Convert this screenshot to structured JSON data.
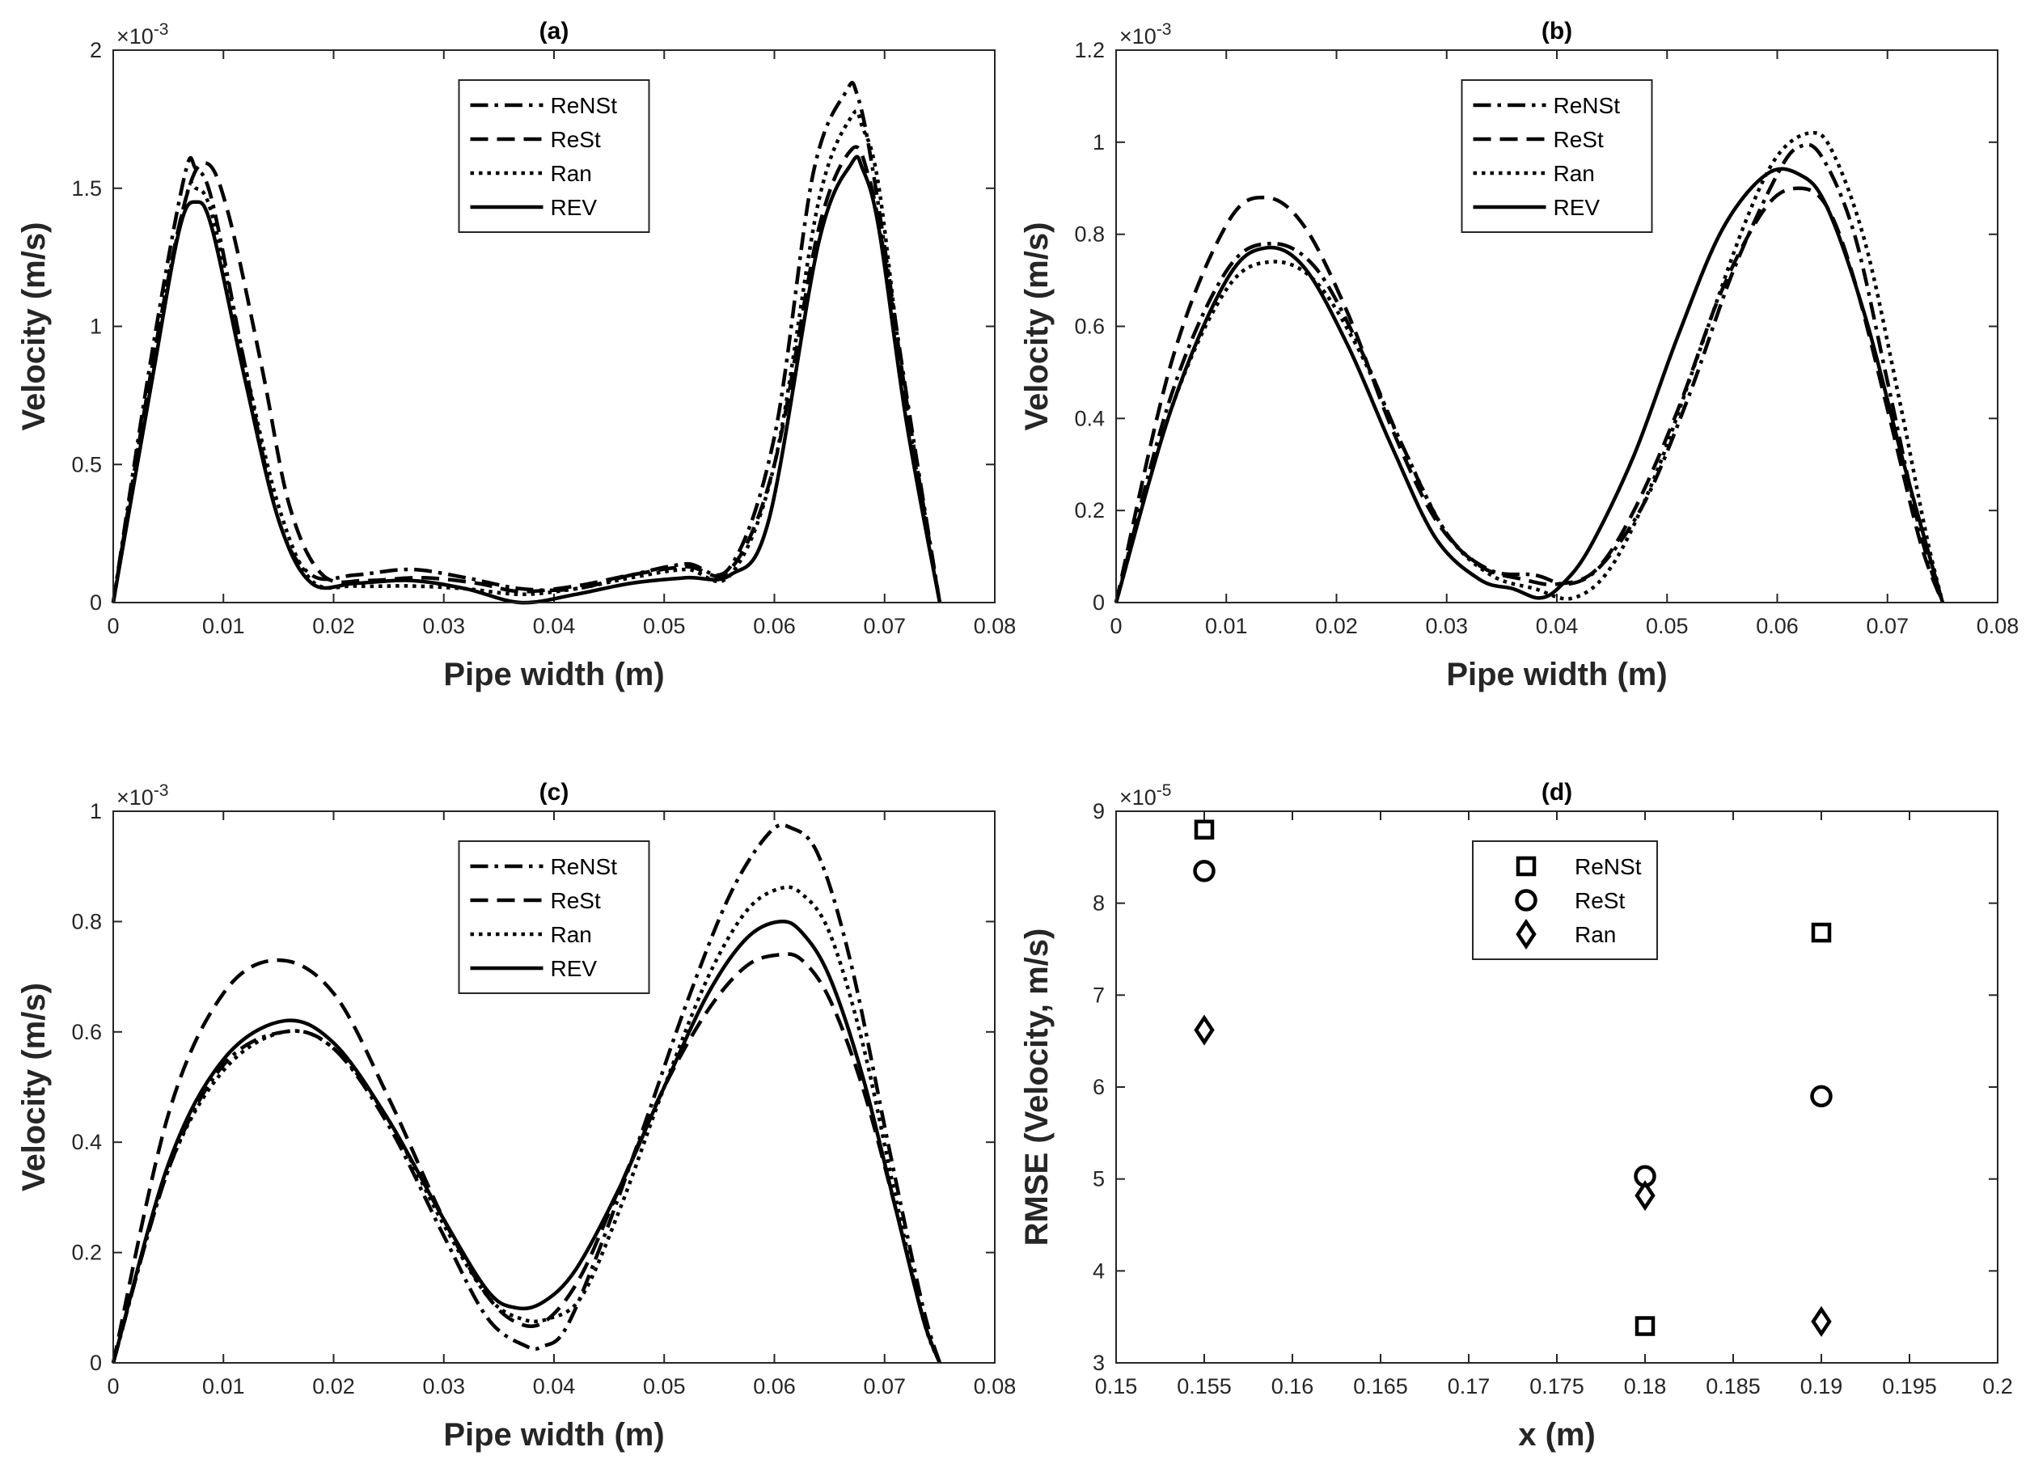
{
  "colors": {
    "line": "#000000",
    "axis": "#262626",
    "background": "#ffffff"
  },
  "chart_data": [
    {
      "id": "a",
      "type": "line",
      "title": "(a)",
      "xlabel": "Pipe width (m)",
      "ylabel": "Velocity (m/s)",
      "xlim": [
        0,
        0.08
      ],
      "ylim": [
        0,
        2
      ],
      "xticks": [
        0,
        0.01,
        0.02,
        0.03,
        0.04,
        0.05,
        0.06,
        0.07,
        0.08
      ],
      "xtick_labels": [
        "0",
        "0.01",
        "0.02",
        "0.03",
        "0.04",
        "0.05",
        "0.06",
        "0.07",
        "0.08"
      ],
      "yticks": [
        0,
        0.5,
        1,
        1.5,
        2
      ],
      "ytick_labels": [
        "0",
        "0.5",
        "1",
        "1.5",
        "2"
      ],
      "multiplier": "×10",
      "multiplier_exp": "-3",
      "legend_position": "top-center",
      "series": [
        {
          "name": "ReNSt",
          "dash": "dashdot",
          "x": [
            0,
            0.0035,
            0.0065,
            0.0075,
            0.009,
            0.012,
            0.015,
            0.018,
            0.022,
            0.027,
            0.032,
            0.037,
            0.042,
            0.047,
            0.052,
            0.056,
            0.06,
            0.0635,
            0.0665,
            0.0675,
            0.069,
            0.072,
            0.075
          ],
          "y": [
            0,
            0.9,
            1.55,
            1.57,
            1.45,
            0.85,
            0.3,
            0.1,
            0.1,
            0.12,
            0.09,
            0.05,
            0.05,
            0.1,
            0.14,
            0.13,
            0.6,
            1.55,
            1.85,
            1.84,
            1.55,
            0.75,
            0
          ]
        },
        {
          "name": "ReSt",
          "dash": "dashed",
          "x": [
            0,
            0.0035,
            0.0065,
            0.0085,
            0.0105,
            0.0135,
            0.016,
            0.019,
            0.023,
            0.028,
            0.033,
            0.037,
            0.042,
            0.047,
            0.052,
            0.056,
            0.06,
            0.064,
            0.067,
            0.0685,
            0.07,
            0.0725,
            0.075
          ],
          "y": [
            0,
            0.85,
            1.45,
            1.59,
            1.4,
            0.85,
            0.35,
            0.1,
            0.08,
            0.09,
            0.07,
            0.04,
            0.06,
            0.1,
            0.13,
            0.12,
            0.5,
            1.35,
            1.64,
            1.55,
            1.25,
            0.6,
            0
          ]
        },
        {
          "name": "Ran",
          "dash": "dotted",
          "x": [
            0,
            0.0035,
            0.0065,
            0.0075,
            0.009,
            0.012,
            0.015,
            0.018,
            0.022,
            0.027,
            0.032,
            0.037,
            0.042,
            0.047,
            0.052,
            0.056,
            0.06,
            0.064,
            0.067,
            0.068,
            0.0695,
            0.072,
            0.075
          ],
          "y": [
            0,
            0.85,
            1.45,
            1.5,
            1.4,
            0.85,
            0.35,
            0.08,
            0.06,
            0.06,
            0.05,
            0.03,
            0.05,
            0.09,
            0.12,
            0.1,
            0.5,
            1.45,
            1.76,
            1.72,
            1.5,
            0.7,
            0
          ]
        },
        {
          "name": "REV",
          "dash": "solid",
          "x": [
            0,
            0.0035,
            0.006,
            0.0075,
            0.009,
            0.012,
            0.015,
            0.018,
            0.022,
            0.027,
            0.032,
            0.037,
            0.042,
            0.047,
            0.052,
            0.056,
            0.0595,
            0.064,
            0.067,
            0.068,
            0.0695,
            0.072,
            0.075
          ],
          "y": [
            0,
            0.8,
            1.35,
            1.45,
            1.35,
            0.8,
            0.3,
            0.07,
            0.07,
            0.08,
            0.05,
            0.0,
            0.03,
            0.07,
            0.09,
            0.1,
            0.3,
            1.3,
            1.59,
            1.57,
            1.35,
            0.65,
            0
          ]
        }
      ]
    },
    {
      "id": "b",
      "type": "line",
      "title": "(b)",
      "xlabel": "Pipe width (m)",
      "ylabel": "Velocity (m/s)",
      "xlim": [
        0,
        0.08
      ],
      "ylim": [
        0,
        1.2
      ],
      "xticks": [
        0,
        0.01,
        0.02,
        0.03,
        0.04,
        0.05,
        0.06,
        0.07,
        0.08
      ],
      "xtick_labels": [
        "0",
        "0.01",
        "0.02",
        "0.03",
        "0.04",
        "0.05",
        "0.06",
        "0.07",
        "0.08"
      ],
      "yticks": [
        0,
        0.2,
        0.4,
        0.6,
        0.8,
        1,
        1.2
      ],
      "ytick_labels": [
        "0",
        "0.2",
        "0.4",
        "0.6",
        "0.8",
        "1",
        "1.2"
      ],
      "multiplier": "×10",
      "multiplier_exp": "-3",
      "legend_position": "top-center",
      "series": [
        {
          "name": "ReNSt",
          "dash": "dashdot",
          "x": [
            0,
            0.005,
            0.01,
            0.014,
            0.018,
            0.022,
            0.026,
            0.03,
            0.034,
            0.038,
            0.041,
            0.044,
            0.048,
            0.052,
            0.056,
            0.06,
            0.062,
            0.064,
            0.067,
            0.07,
            0.073,
            0.075
          ],
          "y": [
            0,
            0.45,
            0.72,
            0.78,
            0.73,
            0.56,
            0.34,
            0.15,
            0.07,
            0.06,
            0.04,
            0.08,
            0.22,
            0.45,
            0.72,
            0.93,
            0.99,
            0.97,
            0.8,
            0.48,
            0.15,
            0
          ]
        },
        {
          "name": "ReSt",
          "dash": "dashed",
          "x": [
            0,
            0.005,
            0.01,
            0.0135,
            0.017,
            0.021,
            0.025,
            0.029,
            0.033,
            0.037,
            0.04,
            0.0435,
            0.047,
            0.051,
            0.055,
            0.059,
            0.062,
            0.0645,
            0.067,
            0.07,
            0.073,
            0.075
          ],
          "y": [
            0,
            0.52,
            0.82,
            0.88,
            0.82,
            0.63,
            0.38,
            0.18,
            0.08,
            0.05,
            0.04,
            0.07,
            0.2,
            0.42,
            0.68,
            0.86,
            0.9,
            0.86,
            0.7,
            0.42,
            0.13,
            0
          ]
        },
        {
          "name": "Ran",
          "dash": "dotted",
          "x": [
            0,
            0.005,
            0.01,
            0.014,
            0.018,
            0.022,
            0.026,
            0.03,
            0.034,
            0.038,
            0.0415,
            0.045,
            0.049,
            0.053,
            0.057,
            0.06,
            0.063,
            0.065,
            0.068,
            0.071,
            0.0735,
            0.075
          ],
          "y": [
            0,
            0.42,
            0.68,
            0.74,
            0.7,
            0.55,
            0.34,
            0.15,
            0.06,
            0.03,
            0.01,
            0.08,
            0.28,
            0.55,
            0.82,
            0.97,
            1.02,
            0.98,
            0.78,
            0.45,
            0.15,
            0
          ]
        },
        {
          "name": "REV",
          "dash": "solid",
          "x": [
            0,
            0.005,
            0.01,
            0.0135,
            0.017,
            0.021,
            0.025,
            0.029,
            0.033,
            0.036,
            0.0385,
            0.0405,
            0.043,
            0.047,
            0.051,
            0.055,
            0.059,
            0.062,
            0.0645,
            0.068,
            0.0715,
            0.075
          ],
          "y": [
            0,
            0.42,
            0.7,
            0.77,
            0.73,
            0.56,
            0.34,
            0.14,
            0.05,
            0.03,
            0.01,
            0.04,
            0.12,
            0.32,
            0.58,
            0.81,
            0.93,
            0.93,
            0.86,
            0.62,
            0.3,
            0
          ]
        }
      ]
    },
    {
      "id": "c",
      "type": "line",
      "title": "(c)",
      "xlabel": "Pipe width (m)",
      "ylabel": "Velocity (m/s)",
      "xlim": [
        0,
        0.08
      ],
      "ylim": [
        0,
        1
      ],
      "xticks": [
        0,
        0.01,
        0.02,
        0.03,
        0.04,
        0.05,
        0.06,
        0.07,
        0.08
      ],
      "xtick_labels": [
        "0",
        "0.01",
        "0.02",
        "0.03",
        "0.04",
        "0.05",
        "0.06",
        "0.07",
        "0.08"
      ],
      "yticks": [
        0,
        0.2,
        0.4,
        0.6,
        0.8,
        1
      ],
      "ytick_labels": [
        "0",
        "0.2",
        "0.4",
        "0.6",
        "0.8",
        "1"
      ],
      "multiplier": "×10",
      "multiplier_exp": "-3",
      "legend_position": "top-center",
      "series": [
        {
          "name": "ReNSt",
          "dash": "dashdot",
          "x": [
            0,
            0.005,
            0.01,
            0.0155,
            0.02,
            0.025,
            0.03,
            0.034,
            0.0375,
            0.039,
            0.041,
            0.044,
            0.048,
            0.052,
            0.056,
            0.0595,
            0.0615,
            0.064,
            0.067,
            0.0705,
            0.0735,
            0.075
          ],
          "y": [
            0,
            0.35,
            0.54,
            0.6,
            0.57,
            0.43,
            0.23,
            0.08,
            0.03,
            0.03,
            0.06,
            0.2,
            0.42,
            0.65,
            0.85,
            0.96,
            0.97,
            0.92,
            0.72,
            0.38,
            0.1,
            0
          ]
        },
        {
          "name": "ReSt",
          "dash": "dashed",
          "x": [
            0,
            0.005,
            0.01,
            0.015,
            0.02,
            0.025,
            0.03,
            0.034,
            0.037,
            0.0395,
            0.0425,
            0.046,
            0.05,
            0.054,
            0.0575,
            0.0605,
            0.0625,
            0.065,
            0.068,
            0.071,
            0.0735,
            0.075
          ],
          "y": [
            0,
            0.45,
            0.67,
            0.73,
            0.67,
            0.48,
            0.26,
            0.12,
            0.07,
            0.08,
            0.16,
            0.32,
            0.5,
            0.64,
            0.72,
            0.74,
            0.73,
            0.66,
            0.5,
            0.28,
            0.08,
            0
          ]
        },
        {
          "name": "Ran",
          "dash": "dotted",
          "x": [
            0,
            0.005,
            0.01,
            0.0155,
            0.02,
            0.025,
            0.03,
            0.034,
            0.037,
            0.0395,
            0.0425,
            0.046,
            0.05,
            0.054,
            0.0575,
            0.0605,
            0.0625,
            0.065,
            0.068,
            0.071,
            0.0735,
            0.075
          ],
          "y": [
            0,
            0.35,
            0.53,
            0.6,
            0.57,
            0.44,
            0.25,
            0.12,
            0.08,
            0.08,
            0.12,
            0.28,
            0.5,
            0.7,
            0.82,
            0.86,
            0.85,
            0.78,
            0.58,
            0.3,
            0.08,
            0
          ]
        },
        {
          "name": "REV",
          "dash": "solid",
          "x": [
            0,
            0.005,
            0.01,
            0.0155,
            0.02,
            0.025,
            0.03,
            0.034,
            0.0365,
            0.039,
            0.042,
            0.046,
            0.05,
            0.054,
            0.0575,
            0.0605,
            0.0625,
            0.065,
            0.068,
            0.071,
            0.0735,
            0.075
          ],
          "y": [
            0,
            0.36,
            0.55,
            0.62,
            0.58,
            0.44,
            0.26,
            0.13,
            0.1,
            0.11,
            0.17,
            0.32,
            0.5,
            0.67,
            0.77,
            0.8,
            0.78,
            0.7,
            0.52,
            0.28,
            0.08,
            0
          ]
        }
      ]
    },
    {
      "id": "d",
      "type": "scatter",
      "title": "(d)",
      "xlabel": "x (m)",
      "ylabel": "RMSE (Velocity, m/s)",
      "xlim": [
        0.15,
        0.2
      ],
      "ylim": [
        3,
        9
      ],
      "xticks": [
        0.15,
        0.155,
        0.16,
        0.165,
        0.17,
        0.175,
        0.18,
        0.185,
        0.19,
        0.195,
        0.2
      ],
      "xtick_labels": [
        "0.15",
        "0.155",
        "0.16",
        "0.165",
        "0.17",
        "0.175",
        "0.18",
        "0.185",
        "0.19",
        "0.195",
        "0.2"
      ],
      "yticks": [
        3,
        4,
        5,
        6,
        7,
        8,
        9
      ],
      "ytick_labels": [
        "3",
        "4",
        "5",
        "6",
        "7",
        "8",
        "9"
      ],
      "multiplier": "×10",
      "multiplier_exp": "-5",
      "legend_position": "top-center",
      "series": [
        {
          "name": "ReNSt",
          "marker": "square",
          "x": [
            0.155,
            0.18,
            0.19
          ],
          "y": [
            8.8,
            3.4,
            7.68
          ]
        },
        {
          "name": "ReSt",
          "marker": "circle",
          "x": [
            0.155,
            0.18,
            0.19
          ],
          "y": [
            8.35,
            5.03,
            5.9
          ]
        },
        {
          "name": "Ran",
          "marker": "diamond",
          "x": [
            0.155,
            0.18,
            0.19
          ],
          "y": [
            6.62,
            4.82,
            3.45
          ]
        }
      ]
    }
  ]
}
